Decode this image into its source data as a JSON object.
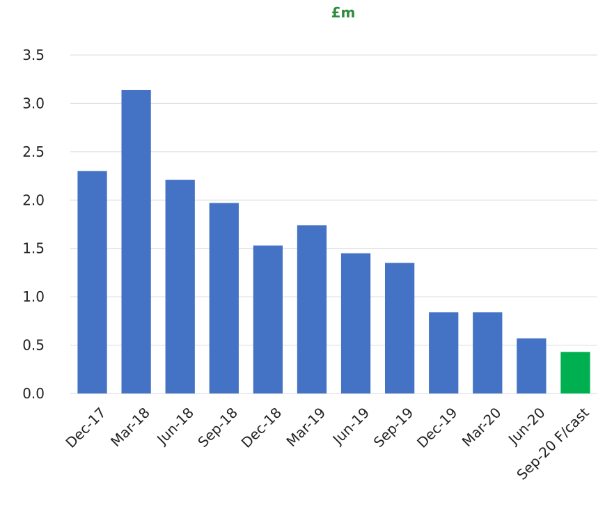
{
  "chart_data": {
    "type": "bar",
    "title": "£m",
    "xlabel": "",
    "ylabel": "",
    "ylim": [
      0,
      3.5
    ],
    "yticks": [
      "0.0",
      "0.5",
      "1.0",
      "1.5",
      "2.0",
      "2.5",
      "3.0",
      "3.5"
    ],
    "grid": true,
    "legend": "none",
    "categories": [
      "Dec-17",
      "Mar-18",
      "Jun-18",
      "Sep-18",
      "Dec-18",
      "Mar-19",
      "Jun-19",
      "Sep-19",
      "Dec-19",
      "Mar-20",
      "Jun-20",
      "Sep-20 F/cast"
    ],
    "values": [
      2.3,
      3.14,
      2.21,
      1.97,
      1.53,
      1.74,
      1.45,
      1.35,
      0.84,
      0.84,
      0.57,
      0.43
    ],
    "colors": {
      "actual": "#4472c4",
      "forecast": "#00b050",
      "title": "#2e8b3e"
    },
    "bar_colors": [
      "#4472c4",
      "#4472c4",
      "#4472c4",
      "#4472c4",
      "#4472c4",
      "#4472c4",
      "#4472c4",
      "#4472c4",
      "#4472c4",
      "#4472c4",
      "#4472c4",
      "#00b050"
    ]
  }
}
